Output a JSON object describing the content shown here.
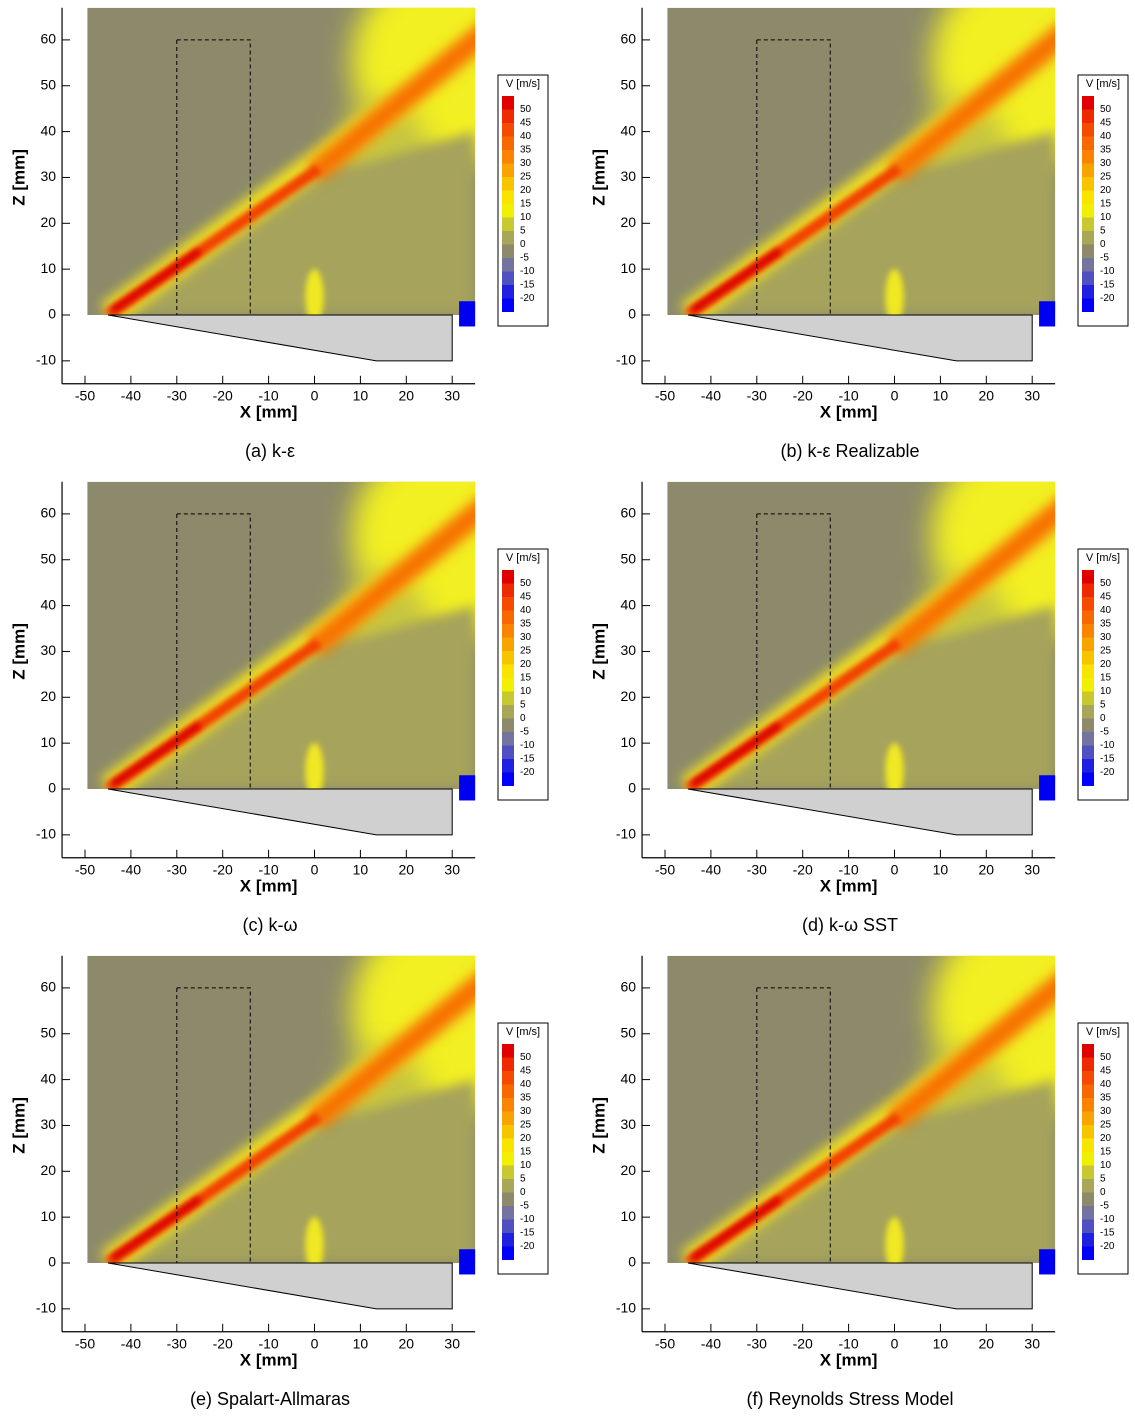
{
  "axes": {
    "xlabel": "X [mm]",
    "ylabel": "Z [mm]",
    "xlim": [
      -55,
      35
    ],
    "ylim": [
      -15,
      67
    ],
    "xticks": [
      -50,
      -40,
      -30,
      -20,
      -10,
      0,
      10,
      20,
      30
    ],
    "yticks": [
      -10,
      0,
      10,
      20,
      30,
      40,
      50,
      60
    ]
  },
  "colorbar": {
    "title": "V [m/s]",
    "levels": [
      50,
      45,
      40,
      35,
      30,
      25,
      20,
      15,
      10,
      5,
      0,
      -5,
      -10,
      -15,
      -20
    ],
    "colors": [
      "#e00000",
      "#ee2a00",
      "#f54a00",
      "#f86800",
      "#f88400",
      "#f8a400",
      "#f8c400",
      "#f8e400",
      "#f0f000",
      "#c8c830",
      "#a8a658",
      "#8c8a6a",
      "#7474a0",
      "#5050c0",
      "#2020e0",
      "#0000f8"
    ]
  },
  "panels": [
    {
      "caption": "(a)  k-ε"
    },
    {
      "caption": "(b)  k-ε Realizable"
    },
    {
      "caption": "(c)  k-ω"
    },
    {
      "caption": "(d)  k-ω SST"
    },
    {
      "caption": "(e)  Spalart-Allmaras"
    },
    {
      "caption": "(f)  Reynolds Stress Model"
    }
  ]
}
